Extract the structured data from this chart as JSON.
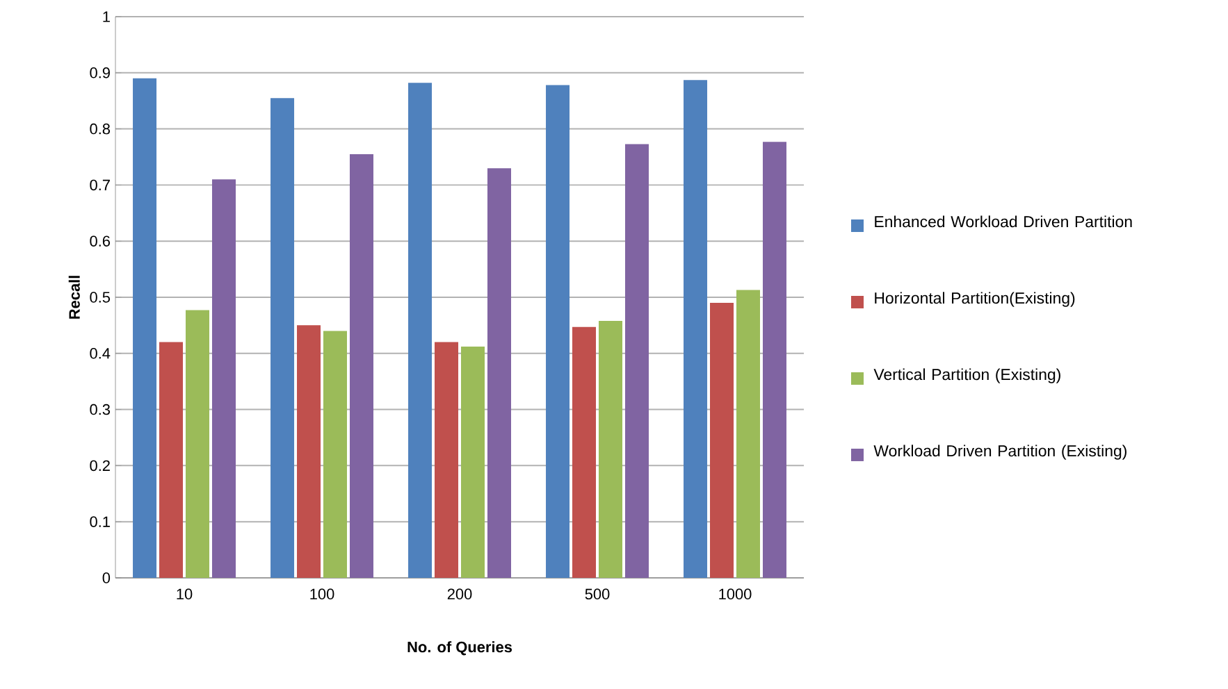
{
  "chart_data": {
    "type": "bar",
    "xlabel": "No. of Queries",
    "ylabel": "Recall",
    "categories": [
      "10",
      "100",
      "200",
      "500",
      "1000"
    ],
    "series": [
      {
        "name": "Enhanced Workload Driven Partition",
        "color": "#4f81bd",
        "values": [
          0.89,
          0.855,
          0.882,
          0.878,
          0.887
        ]
      },
      {
        "name": "Horizontal Partition(Existing)",
        "color": "#c0504d",
        "values": [
          0.42,
          0.45,
          0.42,
          0.447,
          0.49
        ]
      },
      {
        "name": "Vertical Partition  (Existing)",
        "color": "#9bbb59",
        "values": [
          0.477,
          0.44,
          0.412,
          0.458,
          0.513
        ]
      },
      {
        "name": "Workload Driven Partition (Existing)",
        "color": "#8064a2",
        "values": [
          0.71,
          0.755,
          0.73,
          0.773,
          0.777
        ]
      }
    ],
    "ylim": [
      0,
      1
    ],
    "yticks": [
      0,
      0.1,
      0.2,
      0.3,
      0.4,
      0.5,
      0.6,
      0.7,
      0.8,
      0.9,
      1
    ],
    "grid": "y",
    "legend": "right"
  }
}
